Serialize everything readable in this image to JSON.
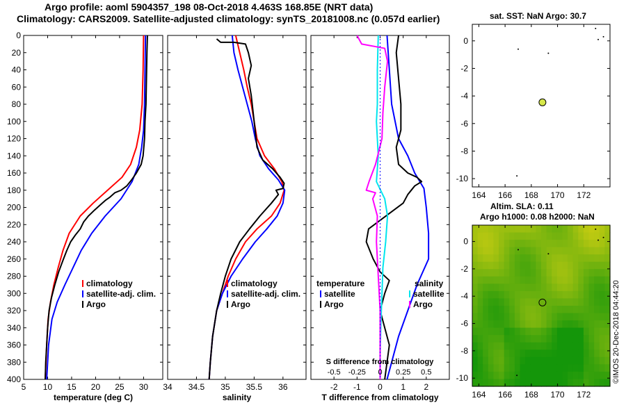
{
  "titles": {
    "line1": "Argo profile: aoml 5904357_198 08-Oct-2018 4.463S 168.85E (NRT data)",
    "line2": "Climatology: CARS2009. Satellite-adjusted climatology: synTS_20181008.nc (0.057d earlier)",
    "sst": "sat. SST: NaN Argo: 30.7",
    "sla1": "Altim. SLA: 0.11",
    "sla2": "Argo h1000: 0.08 h2000: NaN"
  },
  "copyright": "©IMOS 20-Dec-2018 04:44:20",
  "colors": {
    "red": "#ff0000",
    "blue": "#0000ff",
    "black": "#000000",
    "magenta": "#ff00ff",
    "cyan": "#00e5ee"
  },
  "chart_data": [
    {
      "id": "temperature",
      "type": "line",
      "xlabel": "temperature (deg C)",
      "ylabel": "depth",
      "xlim": [
        5,
        34
      ],
      "ylim": [
        0,
        400
      ],
      "xticks": [
        5,
        10,
        15,
        20,
        25,
        30
      ],
      "yticks": [
        0,
        20,
        40,
        60,
        80,
        100,
        120,
        140,
        160,
        180,
        200,
        220,
        240,
        260,
        280,
        300,
        320,
        340,
        360,
        380,
        400
      ],
      "legend": [
        "climatology",
        "satellite-adj. clim.",
        "Argo"
      ],
      "series": [
        {
          "name": "climatology",
          "color": "red",
          "points": [
            [
              30.0,
              0
            ],
            [
              29.9,
              40
            ],
            [
              29.7,
              80
            ],
            [
              29.2,
              110
            ],
            [
              28.5,
              130
            ],
            [
              27.3,
              150
            ],
            [
              25.5,
              165
            ],
            [
              22.5,
              180
            ],
            [
              19.5,
              195
            ],
            [
              16.8,
              210
            ],
            [
              14.5,
              230
            ],
            [
              13.2,
              250
            ],
            [
              12.2,
              270
            ],
            [
              11.3,
              290
            ],
            [
              10.6,
              310
            ],
            [
              10.1,
              330
            ],
            [
              9.8,
              360
            ],
            [
              9.5,
              400
            ]
          ]
        },
        {
          "name": "satellite-adj. clim.",
          "color": "blue",
          "points": [
            [
              30.4,
              0
            ],
            [
              30.3,
              40
            ],
            [
              30.2,
              80
            ],
            [
              30.0,
              110
            ],
            [
              29.6,
              130
            ],
            [
              29.0,
              150
            ],
            [
              27.6,
              170
            ],
            [
              25.3,
              190
            ],
            [
              22.0,
              210
            ],
            [
              19.2,
              230
            ],
            [
              17.0,
              250
            ],
            [
              15.3,
              270
            ],
            [
              13.6,
              290
            ],
            [
              12.0,
              310
            ],
            [
              10.9,
              330
            ],
            [
              10.2,
              360
            ],
            [
              9.8,
              400
            ]
          ]
        },
        {
          "name": "Argo",
          "color": "black",
          "points": [
            [
              30.8,
              0
            ],
            [
              30.7,
              20
            ],
            [
              30.6,
              50
            ],
            [
              30.5,
              80
            ],
            [
              30.3,
              100
            ],
            [
              30.2,
              120
            ],
            [
              29.9,
              140
            ],
            [
              29.5,
              150
            ],
            [
              28.5,
              160
            ],
            [
              27.5,
              168
            ],
            [
              26.5,
              175
            ],
            [
              25.3,
              180
            ],
            [
              24.0,
              183
            ],
            [
              23.0,
              188
            ],
            [
              22.0,
              192
            ],
            [
              21.0,
              197
            ],
            [
              19.8,
              203
            ],
            [
              18.5,
              210
            ],
            [
              17.5,
              217
            ],
            [
              16.8,
              225
            ],
            [
              15.8,
              232
            ],
            [
              14.8,
              240
            ],
            [
              14.0,
              250
            ],
            [
              13.3,
              260
            ],
            [
              12.3,
              275
            ],
            [
              11.5,
              290
            ],
            [
              10.8,
              305
            ],
            [
              10.3,
              320
            ],
            [
              10.0,
              340
            ],
            [
              9.8,
              360
            ],
            [
              9.6,
              380
            ],
            [
              9.5,
              400
            ]
          ]
        }
      ]
    },
    {
      "id": "salinity",
      "type": "line",
      "xlabel": "salinity",
      "xlim": [
        34,
        36.4
      ],
      "ylim": [
        0,
        400
      ],
      "xticks": [
        34,
        34.5,
        35,
        35.5,
        36
      ],
      "xtick_labels": [
        "34",
        "34.5",
        "35",
        "35.5",
        "36"
      ],
      "legend": [
        "climatology",
        "satellite-adj. clim.",
        "Argo"
      ],
      "series": [
        {
          "name": "climatology",
          "color": "red",
          "points": [
            [
              35.18,
              0
            ],
            [
              35.25,
              20
            ],
            [
              35.32,
              40
            ],
            [
              35.38,
              60
            ],
            [
              35.45,
              80
            ],
            [
              35.5,
              100
            ],
            [
              35.55,
              120
            ],
            [
              35.68,
              140
            ],
            [
              35.85,
              155
            ],
            [
              35.98,
              170
            ],
            [
              36.02,
              180
            ],
            [
              35.95,
              195
            ],
            [
              35.8,
              210
            ],
            [
              35.55,
              225
            ],
            [
              35.35,
              240
            ],
            [
              35.18,
              260
            ],
            [
              35.05,
              280
            ],
            [
              34.95,
              300
            ],
            [
              34.85,
              320
            ],
            [
              34.78,
              350
            ],
            [
              34.74,
              380
            ],
            [
              34.72,
              400
            ]
          ]
        },
        {
          "name": "satellite-adj. clim.",
          "color": "blue",
          "points": [
            [
              35.12,
              0
            ],
            [
              35.15,
              20
            ],
            [
              35.22,
              40
            ],
            [
              35.3,
              60
            ],
            [
              35.38,
              80
            ],
            [
              35.46,
              100
            ],
            [
              35.52,
              120
            ],
            [
              35.6,
              140
            ],
            [
              35.75,
              155
            ],
            [
              35.92,
              168
            ],
            [
              36.03,
              180
            ],
            [
              36.0,
              195
            ],
            [
              35.9,
              210
            ],
            [
              35.72,
              225
            ],
            [
              35.52,
              240
            ],
            [
              35.3,
              260
            ],
            [
              35.1,
              280
            ],
            [
              34.95,
              300
            ],
            [
              34.85,
              320
            ],
            [
              34.78,
              350
            ],
            [
              34.74,
              380
            ],
            [
              34.72,
              400
            ]
          ]
        },
        {
          "name": "Argo",
          "color": "black",
          "points": [
            [
              34.85,
              4
            ],
            [
              34.92,
              8
            ],
            [
              35.15,
              8
            ],
            [
              35.35,
              10
            ],
            [
              35.4,
              20
            ],
            [
              35.45,
              35
            ],
            [
              35.4,
              50
            ],
            [
              35.45,
              70
            ],
            [
              35.5,
              100
            ],
            [
              35.55,
              130
            ],
            [
              35.65,
              145
            ],
            [
              35.82,
              155
            ],
            [
              35.95,
              165
            ],
            [
              36.02,
              172
            ],
            [
              36.0,
              178
            ],
            [
              35.88,
              180
            ],
            [
              35.92,
              185
            ],
            [
              35.8,
              195
            ],
            [
              35.6,
              210
            ],
            [
              35.42,
              225
            ],
            [
              35.25,
              240
            ],
            [
              35.1,
              260
            ],
            [
              35.0,
              280
            ],
            [
              34.92,
              300
            ],
            [
              34.85,
              320
            ],
            [
              34.78,
              350
            ],
            [
              34.74,
              380
            ],
            [
              34.72,
              400
            ]
          ]
        }
      ]
    },
    {
      "id": "difference",
      "type": "line",
      "xlabel": "T difference from climatology",
      "xlim": [
        -3,
        3
      ],
      "ylim": [
        0,
        400
      ],
      "xticks": [
        -2,
        -1,
        0,
        1,
        2
      ],
      "xtick_labels": [
        "-2",
        "-1",
        "0",
        "1",
        "2"
      ],
      "top_label": "S difference from climatology",
      "top_ticks": [
        "-0.5",
        "-0.25",
        "0",
        "0.25",
        "0.5"
      ],
      "legend_temperature_title": "temperature",
      "legend_salinity_title": "salinity",
      "legend_temperature": [
        "satellite",
        "Argo"
      ],
      "legend_salinity": [
        "satellite",
        "Argo"
      ],
      "series": [
        {
          "name": "T satellite",
          "color": "blue",
          "points": [
            [
              0.3,
              0
            ],
            [
              0.4,
              40
            ],
            [
              0.5,
              80
            ],
            [
              0.8,
              120
            ],
            [
              1.2,
              140
            ],
            [
              1.5,
              160
            ],
            [
              1.9,
              178
            ],
            [
              2.0,
              200
            ],
            [
              2.1,
              230
            ],
            [
              2.1,
              260
            ],
            [
              1.6,
              290
            ],
            [
              1.2,
              320
            ],
            [
              0.8,
              350
            ],
            [
              0.5,
              380
            ],
            [
              0.3,
              400
            ]
          ]
        },
        {
          "name": "T Argo",
          "color": "black",
          "points": [
            [
              0.8,
              0
            ],
            [
              0.7,
              20
            ],
            [
              0.8,
              50
            ],
            [
              0.9,
              80
            ],
            [
              0.9,
              110
            ],
            [
              0.7,
              130
            ],
            [
              0.8,
              150
            ],
            [
              1.2,
              160
            ],
            [
              1.6,
              165
            ],
            [
              1.8,
              170
            ],
            [
              1.5,
              175
            ],
            [
              1.2,
              185
            ],
            [
              1.0,
              195
            ],
            [
              0.5,
              205
            ],
            [
              0.0,
              215
            ],
            [
              -0.5,
              225
            ],
            [
              -0.6,
              240
            ],
            [
              -0.3,
              260
            ],
            [
              0.0,
              275
            ],
            [
              0.4,
              285
            ],
            [
              0.2,
              300
            ],
            [
              0.0,
              320
            ],
            [
              0.2,
              340
            ],
            [
              0.4,
              360
            ],
            [
              0.3,
              380
            ],
            [
              0.2,
              400
            ]
          ]
        },
        {
          "name": "S satellite",
          "color": "cyan",
          "points": [
            [
              -0.02,
              0
            ],
            [
              -0.03,
              40
            ],
            [
              -0.03,
              80
            ],
            [
              -0.04,
              100
            ],
            [
              -0.02,
              140
            ],
            [
              -0.04,
              170
            ],
            [
              0.05,
              190
            ],
            [
              0.08,
              210
            ],
            [
              0.06,
              240
            ],
            [
              0.03,
              270
            ],
            [
              0.02,
              300
            ],
            [
              0.01,
              330
            ],
            [
              0.0,
              370
            ],
            [
              0.0,
              400
            ]
          ]
        },
        {
          "name": "S Argo",
          "color": "magenta",
          "points": [
            [
              -0.25,
              0
            ],
            [
              -0.2,
              10
            ],
            [
              0.05,
              15
            ],
            [
              0.08,
              30
            ],
            [
              0.05,
              60
            ],
            [
              0.03,
              90
            ],
            [
              0.02,
              120
            ],
            [
              -0.05,
              150
            ],
            [
              -0.12,
              170
            ],
            [
              -0.15,
              180
            ],
            [
              -0.05,
              183
            ],
            [
              -0.08,
              190
            ],
            [
              -0.03,
              210
            ],
            [
              -0.04,
              240
            ],
            [
              -0.02,
              280
            ],
            [
              0.0,
              320
            ],
            [
              0.0,
              400
            ]
          ]
        }
      ]
    },
    {
      "id": "sst_map",
      "type": "scatter",
      "xlim": [
        163.5,
        174
      ],
      "ylim": [
        -10.6,
        1.2
      ],
      "xticks": [
        164,
        166,
        168,
        170,
        172
      ],
      "yticks": [
        0,
        -2,
        -4,
        -6,
        -8,
        -10
      ],
      "profile_lon": 168.85,
      "profile_lat": -4.463,
      "marker_color": "#d7e84a"
    },
    {
      "id": "sla_map",
      "type": "heatmap",
      "xlim": [
        163.5,
        174
      ],
      "ylim": [
        -10.6,
        1.2
      ],
      "xticks": [
        164,
        166,
        168,
        170,
        172
      ],
      "yticks": [
        0,
        -2,
        -4,
        -6,
        -8,
        -10
      ],
      "profile_lon": 168.85,
      "profile_lat": -4.463
    }
  ]
}
